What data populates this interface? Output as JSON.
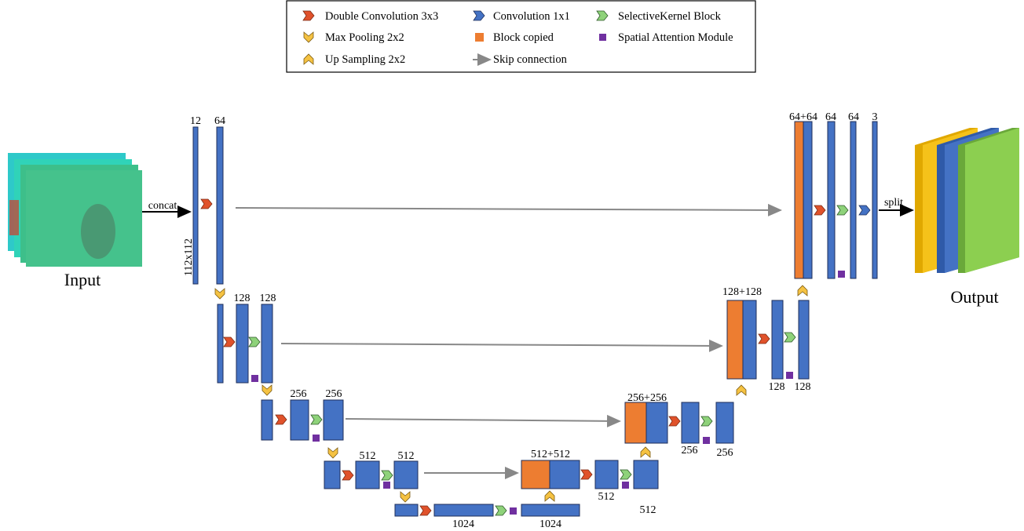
{
  "legend": {
    "items": [
      "Double Convolution 3x3",
      "Convolution 1x1",
      "SelectiveKernel Block",
      "Max Pooling 2x2",
      "Block copied",
      "Spatial Attention Module",
      "Up Sampling 2x2",
      "Skip connection"
    ]
  },
  "input": {
    "label": "Input",
    "concat": "concat",
    "size": "112x112"
  },
  "encoder": {
    "level1": [
      "12",
      "64"
    ],
    "level2": [
      "128",
      "128"
    ],
    "level3": [
      "256",
      "256"
    ],
    "level4": [
      "512",
      "512"
    ],
    "bottleneck": [
      "1024",
      "1024"
    ]
  },
  "decoder": {
    "level4": [
      "512+512",
      "512",
      "512"
    ],
    "level3": [
      "256+256",
      "256",
      "256"
    ],
    "level2": [
      "128+128",
      "128",
      "128"
    ],
    "level1": [
      "64+64",
      "64",
      "64",
      "3"
    ]
  },
  "output": {
    "label": "Output",
    "split": "split"
  }
}
